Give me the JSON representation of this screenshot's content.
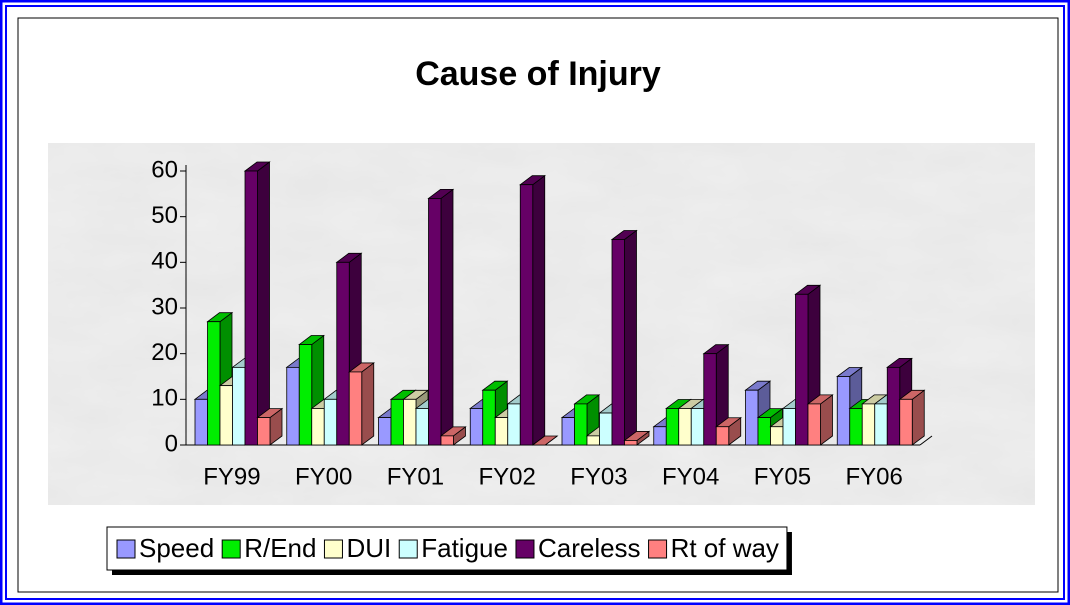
{
  "chart_data": {
    "type": "bar3d",
    "title": "Cause of Injury",
    "categories": [
      "FY99",
      "FY00",
      "FY01",
      "FY02",
      "FY03",
      "FY04",
      "FY05",
      "FY06"
    ],
    "series": [
      {
        "name": "Speed",
        "color": "#9999ff",
        "values": [
          10,
          17,
          6,
          8,
          6,
          4,
          12,
          15
        ]
      },
      {
        "name": "R/End",
        "color": "#00ee00",
        "values": [
          27,
          22,
          10,
          12,
          9,
          8,
          6,
          8
        ]
      },
      {
        "name": "DUI",
        "color": "#ffffcc",
        "values": [
          13,
          8,
          10,
          6,
          2,
          8,
          4,
          9
        ]
      },
      {
        "name": "Fatigue",
        "color": "#ccffff",
        "values": [
          17,
          10,
          8,
          9,
          7,
          8,
          8,
          9
        ]
      },
      {
        "name": "Careless",
        "color": "#660066",
        "values": [
          60,
          40,
          54,
          57,
          45,
          20,
          33,
          17
        ]
      },
      {
        "name": "Rt of way",
        "color": "#ff8080",
        "values": [
          6,
          16,
          2,
          0,
          1,
          4,
          9,
          10
        ]
      }
    ],
    "ylim": [
      0,
      60
    ],
    "yticks": [
      0,
      10,
      20,
      30,
      40,
      50,
      60
    ],
    "legend": "bottom"
  }
}
